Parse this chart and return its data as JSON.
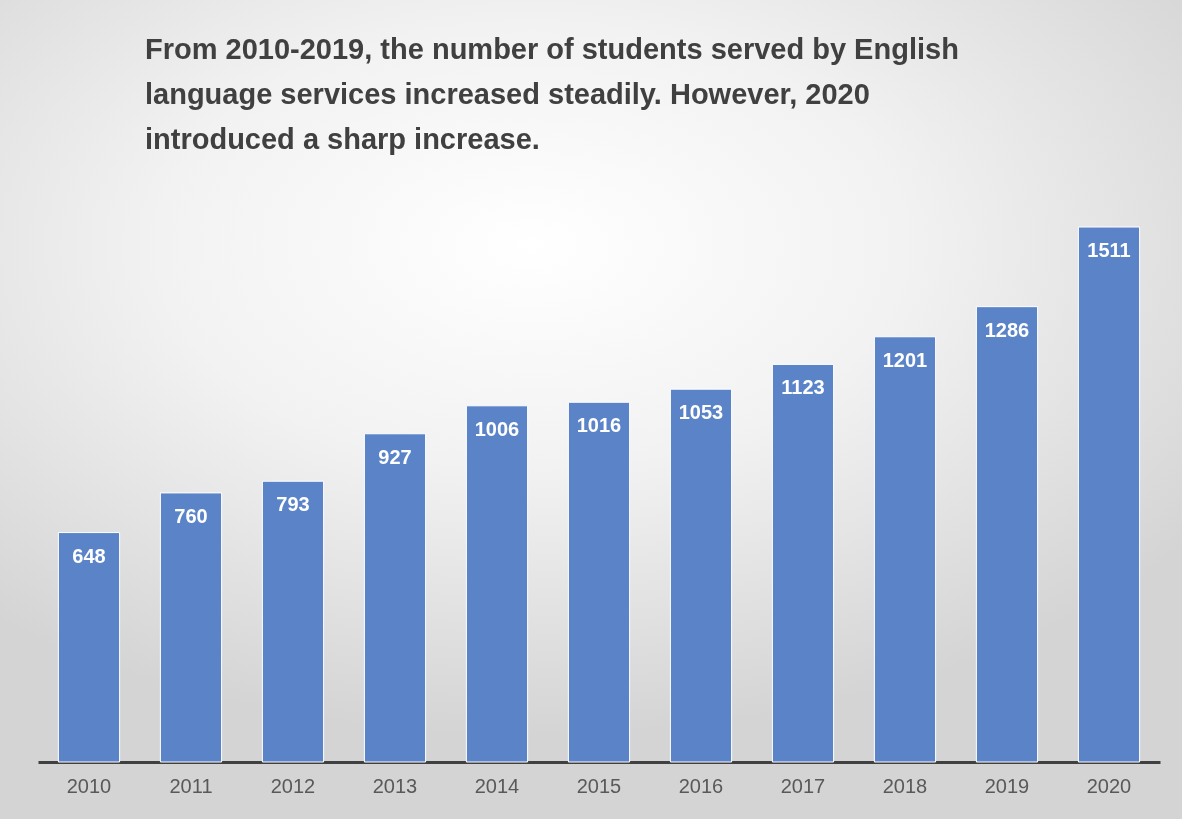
{
  "chart_data": {
    "type": "bar",
    "title": "From 2010-2019, the number of students served by English language services increased steadily. However, 2020 introduced a sharp increase.",
    "categories": [
      "2010",
      "2011",
      "2012",
      "2013",
      "2014",
      "2015",
      "2016",
      "2017",
      "2018",
      "2019",
      "2020"
    ],
    "values": [
      648,
      760,
      793,
      927,
      1006,
      1016,
      1053,
      1123,
      1201,
      1286,
      1511
    ],
    "color": "#5b84c8",
    "data_labels": true
  }
}
